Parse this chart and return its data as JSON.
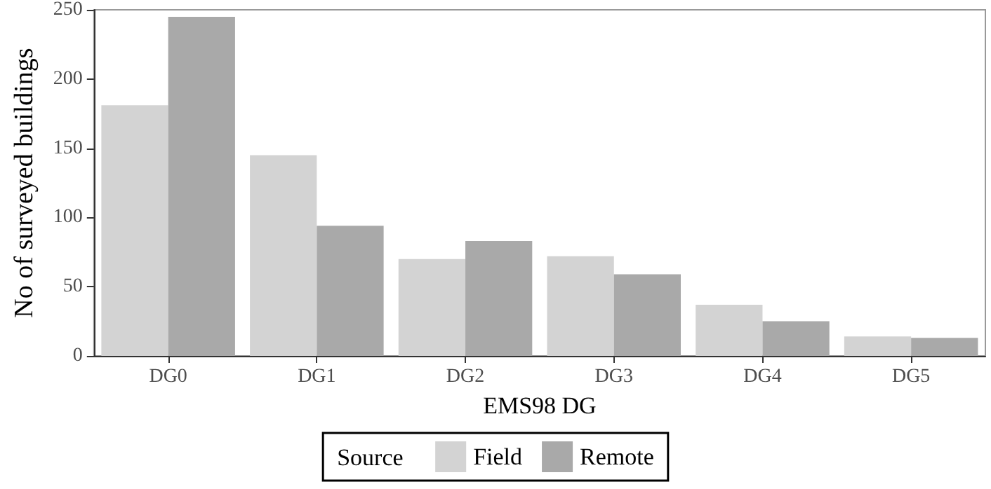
{
  "chart_data": {
    "type": "bar",
    "xlabel": "EMS98 DG",
    "ylabel": "No of surveyed buildings",
    "legend_title": "Source",
    "categories": [
      "DG0",
      "DG1",
      "DG2",
      "DG3",
      "DG4",
      "DG5"
    ],
    "series": [
      {
        "name": "Field",
        "color": "#d3d3d3",
        "values": [
          181,
          145,
          70,
          72,
          37,
          14
        ]
      },
      {
        "name": "Remote",
        "color": "#a9a9a9",
        "values": [
          245,
          94,
          83,
          59,
          25,
          13
        ]
      }
    ],
    "ylim": [
      0,
      250
    ],
    "yticks": [
      0,
      50,
      100,
      150,
      200,
      250
    ],
    "grid": false,
    "legend": "bottom"
  }
}
